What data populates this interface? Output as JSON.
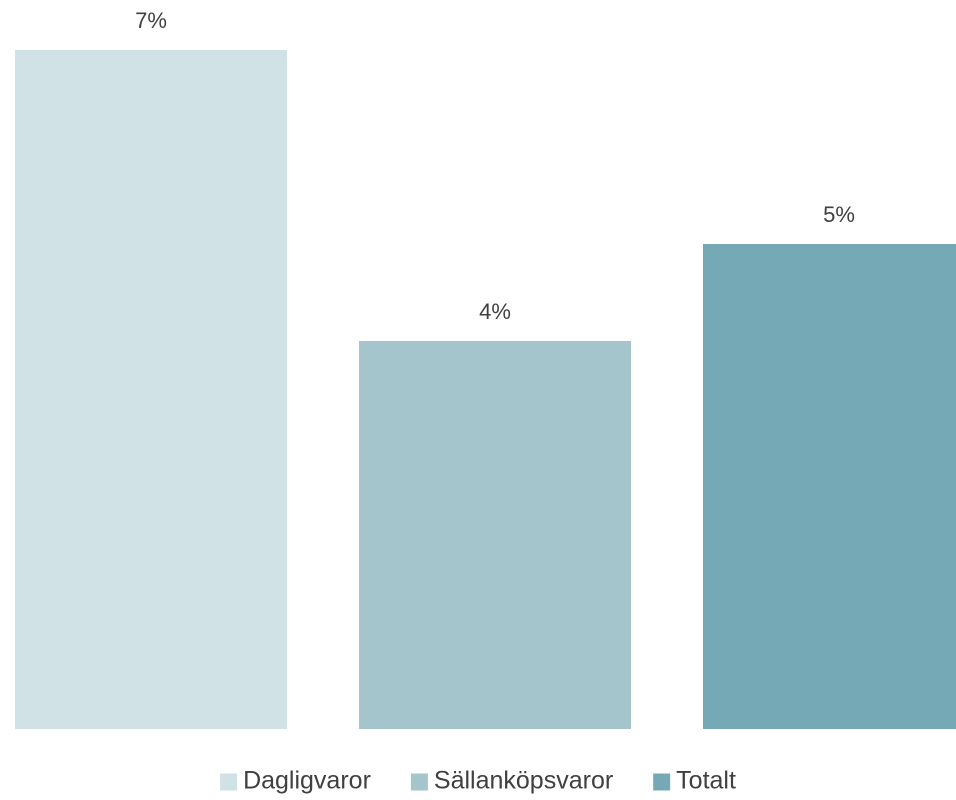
{
  "chart_data": {
    "type": "bar",
    "categories": [
      null
    ],
    "series": [
      {
        "name": "Dagligvaror",
        "color": "#d1e2e7",
        "values": [
          7
        ],
        "value_labels": [
          "7%"
        ]
      },
      {
        "name": "Sällanköpsvaror",
        "color": "#a5c5cd",
        "values": [
          4
        ],
        "value_labels": [
          "4%"
        ]
      },
      {
        "name": "Totalt",
        "color": "#75a9b5",
        "values": [
          5
        ],
        "value_labels": [
          "5%"
        ]
      }
    ],
    "legend": "bottom"
  }
}
